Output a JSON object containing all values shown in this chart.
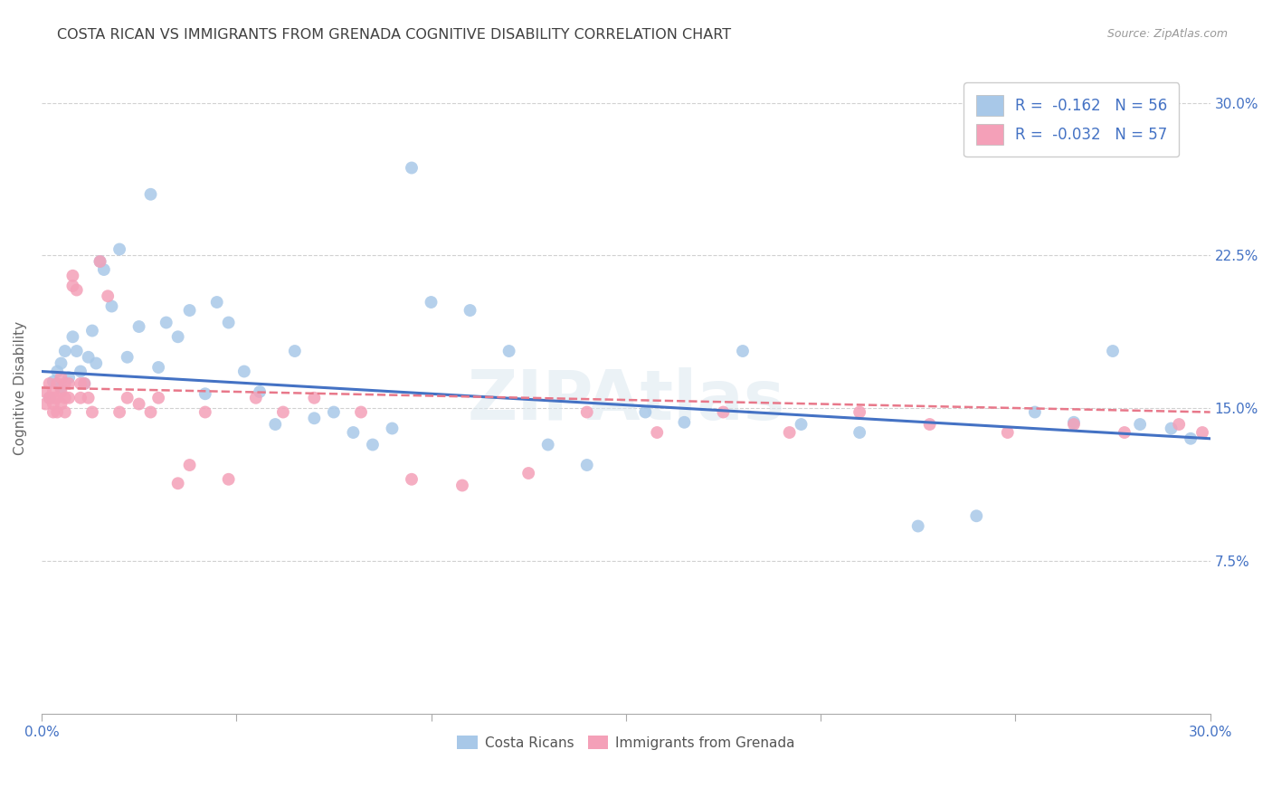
{
  "title": "COSTA RICAN VS IMMIGRANTS FROM GRENADA COGNITIVE DISABILITY CORRELATION CHART",
  "source": "Source: ZipAtlas.com",
  "ylabel": "Cognitive Disability",
  "xlim": [
    0.0,
    0.3
  ],
  "ylim": [
    0.0,
    0.32
  ],
  "yticks": [
    0.075,
    0.15,
    0.225,
    0.3
  ],
  "xticks": [
    0.0,
    0.05,
    0.1,
    0.15,
    0.2,
    0.25,
    0.3
  ],
  "legend_r1": "R =  -0.162   N = 56",
  "legend_r2": "R =  -0.032   N = 57",
  "color_blue": "#a8c8e8",
  "color_pink": "#f4a0b8",
  "line_blue": "#4472c4",
  "line_pink": "#e8788a",
  "title_color": "#404040",
  "axis_label_color": "#4472c4",
  "legend_text_color": "#4472c4",
  "blue_scatter_x": [
    0.002,
    0.003,
    0.004,
    0.005,
    0.005,
    0.006,
    0.007,
    0.008,
    0.009,
    0.01,
    0.011,
    0.012,
    0.013,
    0.014,
    0.015,
    0.016,
    0.018,
    0.02,
    0.022,
    0.025,
    0.028,
    0.03,
    0.032,
    0.035,
    0.038,
    0.042,
    0.045,
    0.048,
    0.052,
    0.056,
    0.06,
    0.065,
    0.07,
    0.075,
    0.08,
    0.085,
    0.09,
    0.095,
    0.1,
    0.11,
    0.12,
    0.13,
    0.14,
    0.155,
    0.165,
    0.18,
    0.195,
    0.21,
    0.225,
    0.24,
    0.255,
    0.265,
    0.275,
    0.282,
    0.29,
    0.295
  ],
  "blue_scatter_y": [
    0.155,
    0.163,
    0.168,
    0.172,
    0.16,
    0.178,
    0.165,
    0.185,
    0.178,
    0.168,
    0.162,
    0.175,
    0.188,
    0.172,
    0.222,
    0.218,
    0.2,
    0.228,
    0.175,
    0.19,
    0.255,
    0.17,
    0.192,
    0.185,
    0.198,
    0.157,
    0.202,
    0.192,
    0.168,
    0.158,
    0.142,
    0.178,
    0.145,
    0.148,
    0.138,
    0.132,
    0.14,
    0.268,
    0.202,
    0.198,
    0.178,
    0.132,
    0.122,
    0.148,
    0.143,
    0.178,
    0.142,
    0.138,
    0.092,
    0.097,
    0.148,
    0.143,
    0.178,
    0.142,
    0.14,
    0.135
  ],
  "pink_scatter_x": [
    0.001,
    0.001,
    0.002,
    0.002,
    0.003,
    0.003,
    0.003,
    0.003,
    0.004,
    0.004,
    0.004,
    0.005,
    0.005,
    0.005,
    0.006,
    0.006,
    0.006,
    0.007,
    0.007,
    0.008,
    0.008,
    0.009,
    0.01,
    0.01,
    0.011,
    0.012,
    0.013,
    0.015,
    0.017,
    0.02,
    0.022,
    0.025,
    0.028,
    0.03,
    0.035,
    0.038,
    0.042,
    0.048,
    0.055,
    0.062,
    0.07,
    0.082,
    0.095,
    0.108,
    0.125,
    0.14,
    0.158,
    0.175,
    0.192,
    0.21,
    0.228,
    0.248,
    0.265,
    0.278,
    0.292,
    0.298,
    0.302
  ],
  "pink_scatter_y": [
    0.158,
    0.152,
    0.162,
    0.155,
    0.158,
    0.155,
    0.152,
    0.148,
    0.162,
    0.155,
    0.148,
    0.165,
    0.158,
    0.152,
    0.162,
    0.155,
    0.148,
    0.162,
    0.155,
    0.215,
    0.21,
    0.208,
    0.162,
    0.155,
    0.162,
    0.155,
    0.148,
    0.222,
    0.205,
    0.148,
    0.155,
    0.152,
    0.148,
    0.155,
    0.113,
    0.122,
    0.148,
    0.115,
    0.155,
    0.148,
    0.155,
    0.148,
    0.115,
    0.112,
    0.118,
    0.148,
    0.138,
    0.148,
    0.138,
    0.148,
    0.142,
    0.138,
    0.142,
    0.138,
    0.142,
    0.138,
    0.142
  ]
}
